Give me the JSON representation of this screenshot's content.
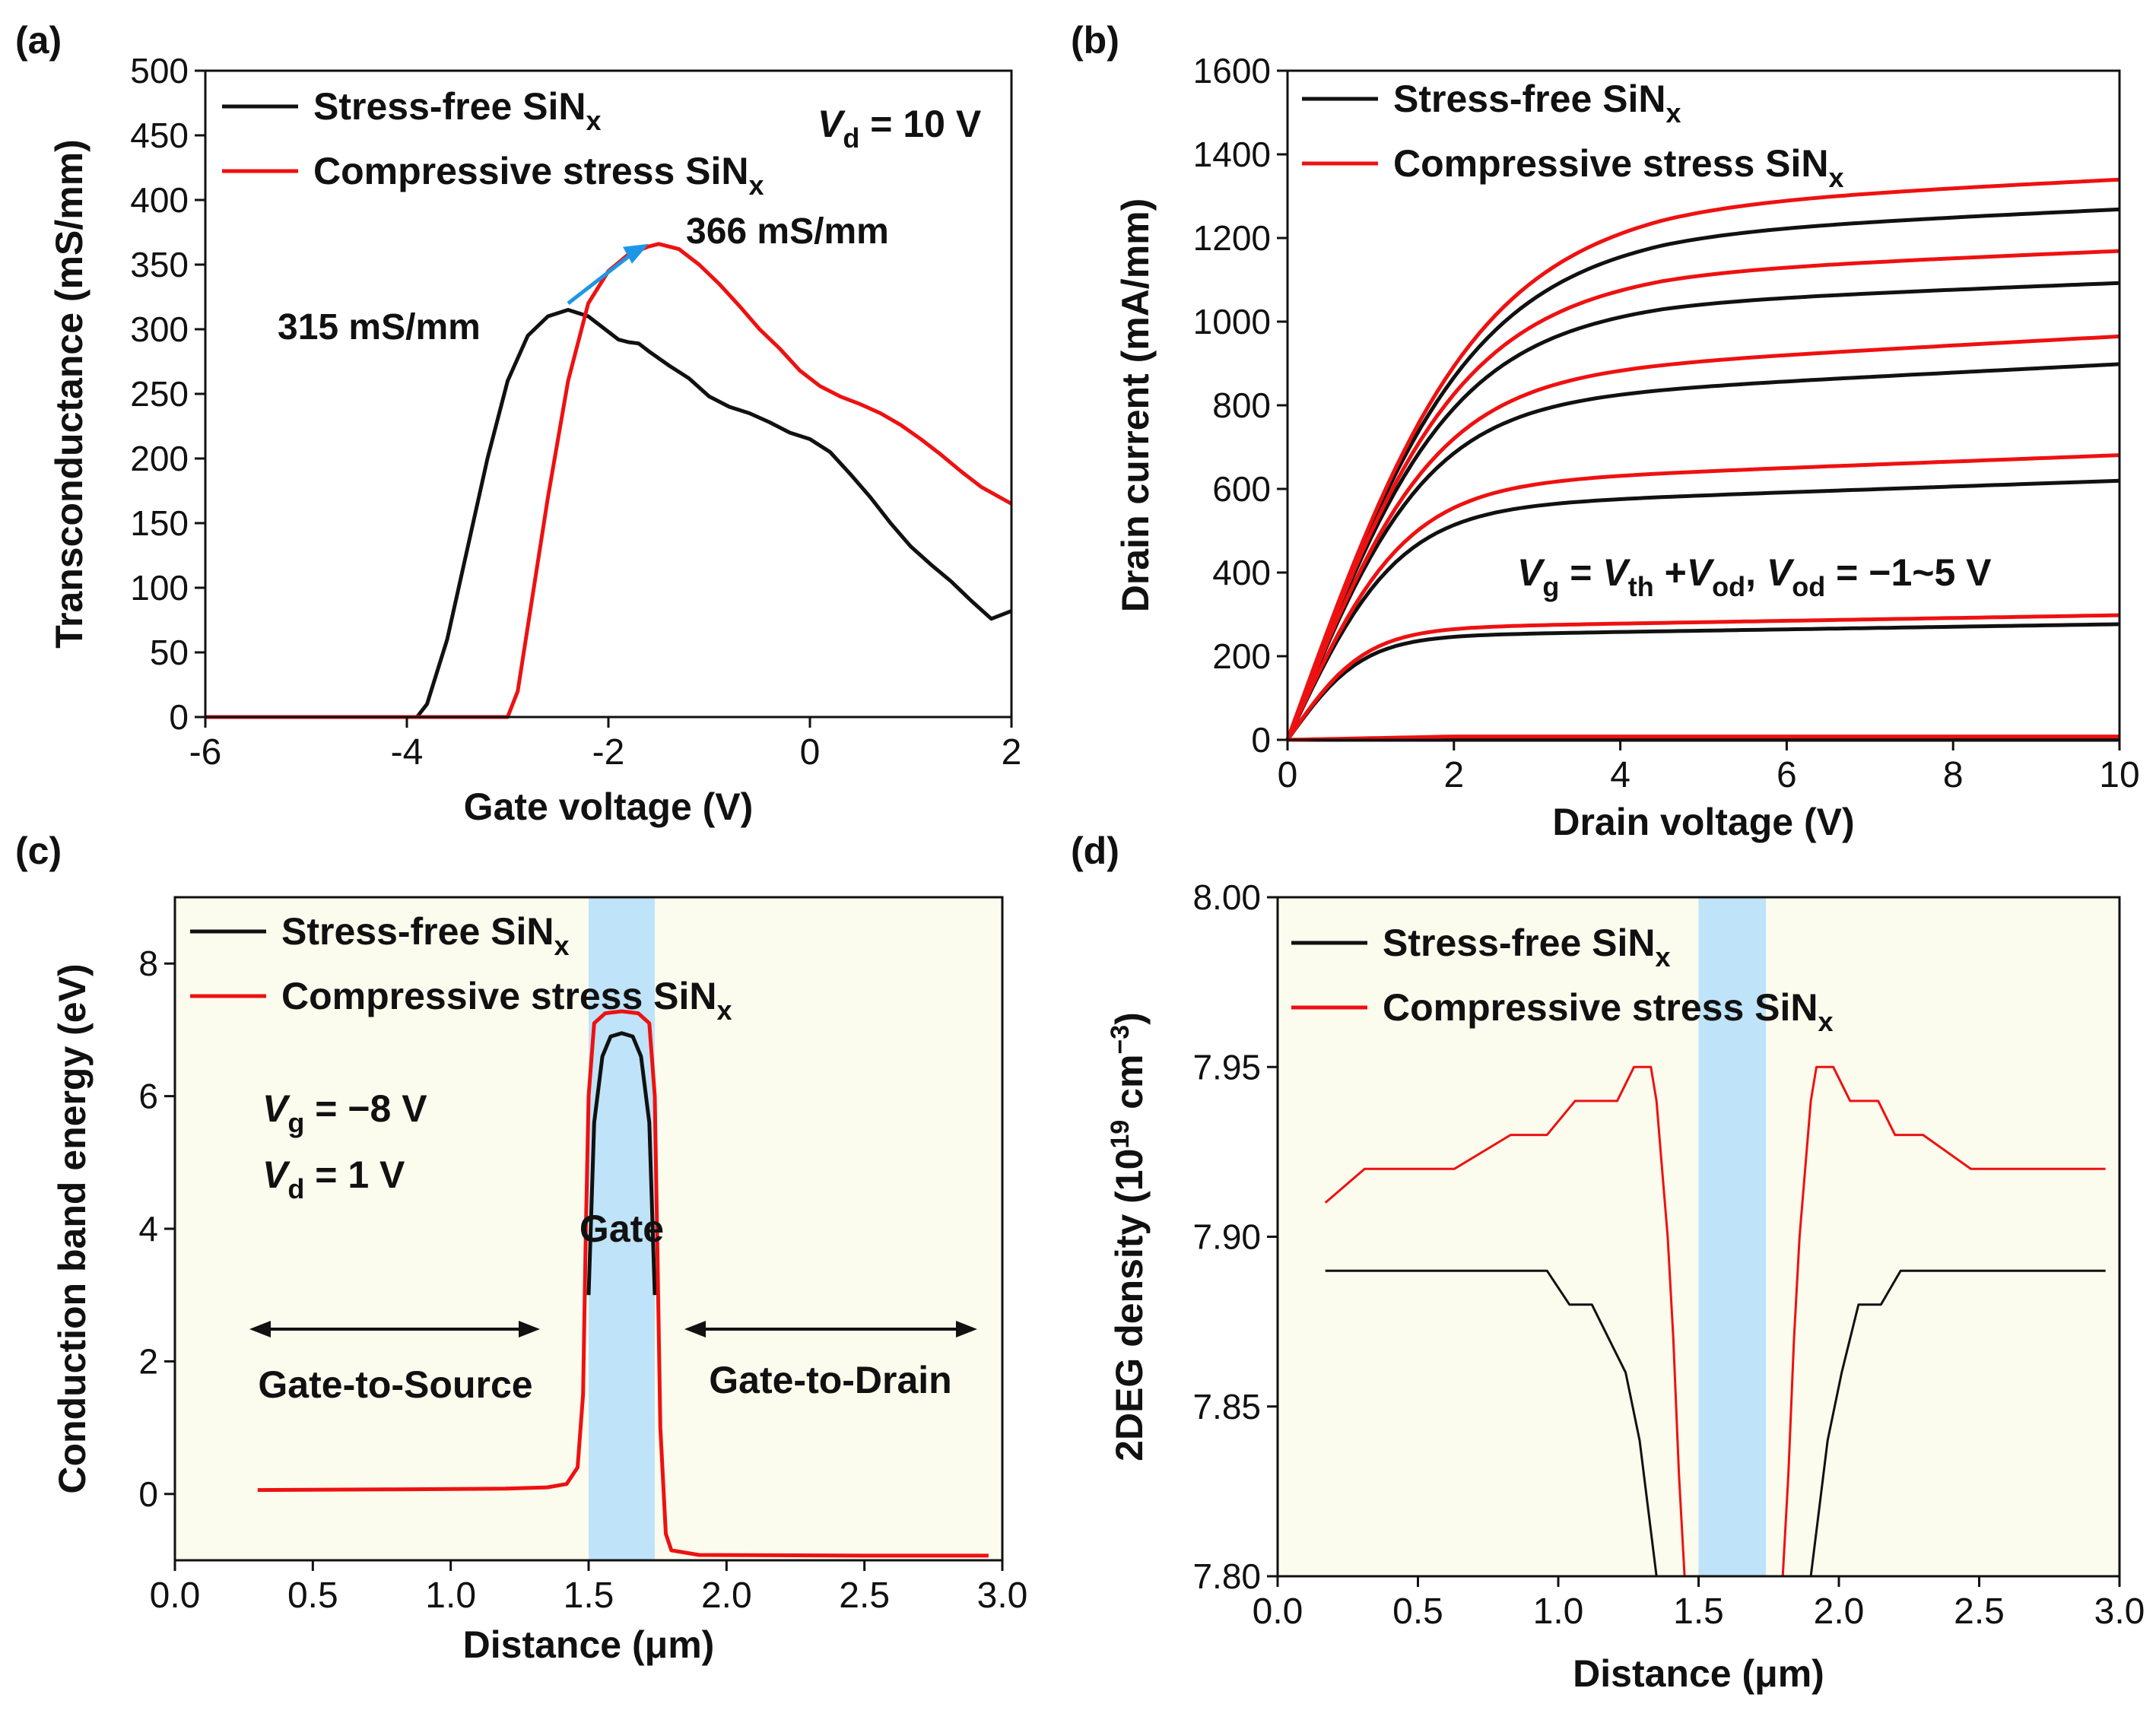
{
  "colors": {
    "black_series": "#111111",
    "red_series": "#ee1111",
    "arrow": "#1e96e6",
    "panel_bg": "#fbfbee",
    "gate_band": "#bfe3f8"
  },
  "panels": {
    "a": {
      "label": "(a)"
    },
    "b": {
      "label": "(b)"
    },
    "c": {
      "label": "(c)"
    },
    "d": {
      "label": "(d)"
    }
  },
  "chart_data": [
    {
      "id": "a",
      "type": "line",
      "xlabel": "Gate voltage (V)",
      "ylabel": "Transconductance (mS/mm)",
      "xlim": [
        -6,
        2
      ],
      "ylim": [
        0,
        500
      ],
      "xticks": [
        "-6",
        "-4",
        "-2",
        "0",
        "2"
      ],
      "yticks": [
        "0",
        "50",
        "100",
        "150",
        "200",
        "250",
        "300",
        "350",
        "400",
        "450",
        "500"
      ],
      "condition": {
        "symbol": "V",
        "sub": "d",
        "text": " = 10 V"
      },
      "legend": [
        {
          "text": "Stress-free SiN",
          "sub": "x",
          "color": "#111111"
        },
        {
          "text": "Compressive stress SiN",
          "sub": "x",
          "color": "#ee1111"
        }
      ],
      "annotations": {
        "peak_black": "315 mS/mm",
        "peak_red": "366 mS/mm"
      },
      "series": [
        {
          "name": "Stress-free SiNx",
          "color": "#111111",
          "points": [
            [
              -6,
              0
            ],
            [
              -3.9,
              0
            ],
            [
              -3.8,
              10
            ],
            [
              -3.6,
              60
            ],
            [
              -3.4,
              130
            ],
            [
              -3.2,
              200
            ],
            [
              -3.0,
              260
            ],
            [
              -2.8,
              295
            ],
            [
              -2.6,
              310
            ],
            [
              -2.4,
              315
            ],
            [
              -2.2,
              310
            ],
            [
              -2.0,
              298
            ],
            [
              -1.9,
              292
            ],
            [
              -1.8,
              290
            ],
            [
              -1.7,
              289
            ],
            [
              -1.6,
              283
            ],
            [
              -1.4,
              272
            ],
            [
              -1.2,
              262
            ],
            [
              -1.0,
              248
            ],
            [
              -0.8,
              240
            ],
            [
              -0.6,
              235
            ],
            [
              -0.4,
              228
            ],
            [
              -0.2,
              220
            ],
            [
              0,
              215
            ],
            [
              0.2,
              205
            ],
            [
              0.4,
              188
            ],
            [
              0.6,
              170
            ],
            [
              0.8,
              150
            ],
            [
              1.0,
              132
            ],
            [
              1.2,
              118
            ],
            [
              1.4,
              105
            ],
            [
              1.6,
              90
            ],
            [
              1.8,
              76
            ],
            [
              2.0,
              82
            ]
          ]
        },
        {
          "name": "Compressive stress SiNx",
          "color": "#ee1111",
          "points": [
            [
              -6,
              0
            ],
            [
              -3.0,
              0
            ],
            [
              -2.9,
              20
            ],
            [
              -2.8,
              70
            ],
            [
              -2.6,
              170
            ],
            [
              -2.4,
              260
            ],
            [
              -2.2,
              320
            ],
            [
              -2.0,
              345
            ],
            [
              -1.8,
              358
            ],
            [
              -1.6,
              364
            ],
            [
              -1.5,
              366
            ],
            [
              -1.3,
              362
            ],
            [
              -1.1,
              350
            ],
            [
              -0.9,
              335
            ],
            [
              -0.7,
              318
            ],
            [
              -0.5,
              300
            ],
            [
              -0.3,
              285
            ],
            [
              -0.1,
              268
            ],
            [
              0.1,
              256
            ],
            [
              0.3,
              248
            ],
            [
              0.5,
              242
            ],
            [
              0.7,
              235
            ],
            [
              0.9,
              226
            ],
            [
              1.1,
              215
            ],
            [
              1.3,
              203
            ],
            [
              1.5,
              190
            ],
            [
              1.7,
              178
            ],
            [
              2.0,
              165
            ]
          ]
        }
      ]
    },
    {
      "id": "b",
      "type": "line",
      "xlabel": "Drain voltage (V)",
      "ylabel": "Drain current (mA/mm)",
      "xlim": [
        0,
        10
      ],
      "ylim": [
        0,
        1600
      ],
      "xticks": [
        "0",
        "2",
        "4",
        "6",
        "8",
        "10"
      ],
      "yticks": [
        "0",
        "200",
        "400",
        "600",
        "800",
        "1000",
        "1200",
        "1400",
        "1600"
      ],
      "legend": [
        {
          "text": "Stress-free SiN",
          "sub": "x",
          "color": "#111111"
        },
        {
          "text": "Compressive stress SiN",
          "sub": "x",
          "color": "#ee1111"
        }
      ],
      "condition": "V_g = V_th +V_od, V_od = −1~5 V",
      "condition_parts": {
        "v": "V",
        "g": "g",
        "eq": " = ",
        "th": "th",
        "plus": " +",
        "od": "od",
        "sep": ", ",
        "range": " = −1~5 V"
      },
      "series": [
        {
          "name": "Stress-free SiNx",
          "color": "#111111",
          "sat_currents": [
            0,
            258,
            578,
            838,
            1042,
            1210
          ]
        },
        {
          "name": "Compressive stress SiNx",
          "color": "#ee1111",
          "sat_currents": [
            8,
            278,
            635,
            900,
            1115,
            1278
          ]
        }
      ]
    },
    {
      "id": "c",
      "type": "line",
      "xlabel": "Distance (μm)",
      "ylabel": "Conduction band energy (eV)",
      "xlim": [
        0,
        3
      ],
      "ylim": [
        -1,
        9
      ],
      "xticks": [
        "0.0",
        "0.5",
        "1.0",
        "1.5",
        "2.0",
        "2.5",
        "3.0"
      ],
      "yticks": [
        "0",
        "2",
        "4",
        "6",
        "8"
      ],
      "gate_region": [
        1.5,
        1.74
      ],
      "legend": [
        {
          "text": "Stress-free SiN",
          "sub": "x",
          "color": "#111111"
        },
        {
          "text": "Compressive stress SiN",
          "sub": "x",
          "color": "#ee1111"
        }
      ],
      "annotations": {
        "gate": "Gate",
        "gs": "Gate-to-Source",
        "gd": "Gate-to-Drain",
        "vg": {
          "symbol": "V",
          "sub": "g",
          "text": " = −8 V"
        },
        "vd": {
          "symbol": "V",
          "sub": "d",
          "text": " =  1 V"
        }
      },
      "series": [
        {
          "name": "Stress-free SiNx",
          "color": "#111111",
          "points": [
            [
              1.5,
              3
            ],
            [
              1.52,
              5.6
            ],
            [
              1.55,
              6.6
            ],
            [
              1.58,
              6.9
            ],
            [
              1.62,
              6.95
            ],
            [
              1.66,
              6.9
            ],
            [
              1.69,
              6.6
            ],
            [
              1.72,
              5.6
            ],
            [
              1.74,
              3.0
            ]
          ]
        },
        {
          "name": "Compressive stress SiNx",
          "color": "#ee1111",
          "points": [
            [
              0.3,
              0.06
            ],
            [
              0.8,
              0.07
            ],
            [
              1.2,
              0.08
            ],
            [
              1.35,
              0.1
            ],
            [
              1.42,
              0.15
            ],
            [
              1.46,
              0.4
            ],
            [
              1.48,
              1.5
            ],
            [
              1.49,
              4.0
            ],
            [
              1.5,
              6.0
            ],
            [
              1.52,
              7.1
            ],
            [
              1.56,
              7.25
            ],
            [
              1.62,
              7.28
            ],
            [
              1.68,
              7.25
            ],
            [
              1.72,
              7.1
            ],
            [
              1.74,
              6.0
            ],
            [
              1.75,
              3.5
            ],
            [
              1.76,
              1.0
            ],
            [
              1.78,
              -0.6
            ],
            [
              1.8,
              -0.85
            ],
            [
              1.9,
              -0.92
            ],
            [
              2.5,
              -0.93
            ],
            [
              2.95,
              -0.93
            ]
          ]
        }
      ]
    },
    {
      "id": "d",
      "type": "line",
      "xlabel": "Distance (μm)",
      "ylabel": "2DEG density (10^19 cm^-3)",
      "ylabel_parts": {
        "a": "2DEG density (10",
        "sup1": "19",
        "b": " cm",
        "sup2": "−3",
        "c": ")"
      },
      "xlim": [
        0,
        3
      ],
      "ylim": [
        7.8,
        8.0
      ],
      "xticks": [
        "0.0",
        "0.5",
        "1.0",
        "1.5",
        "2.0",
        "2.5",
        "3.0"
      ],
      "yticks": [
        "7.80",
        "7.85",
        "7.90",
        "7.95",
        "8.00"
      ],
      "gate_region": [
        1.5,
        1.74
      ],
      "legend": [
        {
          "text": "Stress-free SiN",
          "sub": "x",
          "color": "#111111"
        },
        {
          "text": "Compressive stress SiN",
          "sub": "x",
          "color": "#ee1111"
        }
      ],
      "series": [
        {
          "name": "Stress-free SiNx",
          "color": "#111111",
          "points": [
            [
              0.17,
              7.89
            ],
            [
              0.96,
              7.89
            ],
            [
              1.04,
              7.88
            ],
            [
              1.12,
              7.88
            ],
            [
              1.18,
              7.87
            ],
            [
              1.24,
              7.86
            ],
            [
              1.29,
              7.84
            ],
            [
              1.32,
              7.82
            ],
            [
              1.35,
              7.8
            ],
            [
              null,
              null
            ],
            [
              1.9,
              7.8
            ],
            [
              1.93,
              7.82
            ],
            [
              1.96,
              7.84
            ],
            [
              2.01,
              7.86
            ],
            [
              2.07,
              7.88
            ],
            [
              2.15,
              7.88
            ],
            [
              2.22,
              7.89
            ],
            [
              2.95,
              7.89
            ]
          ]
        },
        {
          "name": "Compressive stress SiNx",
          "color": "#ee1111",
          "points": [
            [
              0.17,
              7.91
            ],
            [
              0.31,
              7.92
            ],
            [
              0.63,
              7.92
            ],
            [
              0.83,
              7.93
            ],
            [
              0.96,
              7.93
            ],
            [
              1.06,
              7.94
            ],
            [
              1.21,
              7.94
            ],
            [
              1.27,
              7.95
            ],
            [
              1.33,
              7.95
            ],
            [
              1.35,
              7.94
            ],
            [
              1.37,
              7.92
            ],
            [
              1.39,
              7.9
            ],
            [
              1.41,
              7.87
            ],
            [
              1.43,
              7.83
            ],
            [
              1.45,
              7.8
            ],
            [
              null,
              null
            ],
            [
              1.8,
              7.8
            ],
            [
              1.82,
              7.83
            ],
            [
              1.84,
              7.87
            ],
            [
              1.86,
              7.9
            ],
            [
              1.88,
              7.92
            ],
            [
              1.9,
              7.94
            ],
            [
              1.92,
              7.95
            ],
            [
              1.98,
              7.95
            ],
            [
              2.04,
              7.94
            ],
            [
              2.14,
              7.94
            ],
            [
              2.2,
              7.93
            ],
            [
              2.3,
              7.93
            ],
            [
              2.47,
              7.92
            ],
            [
              2.95,
              7.92
            ]
          ]
        }
      ]
    }
  ]
}
